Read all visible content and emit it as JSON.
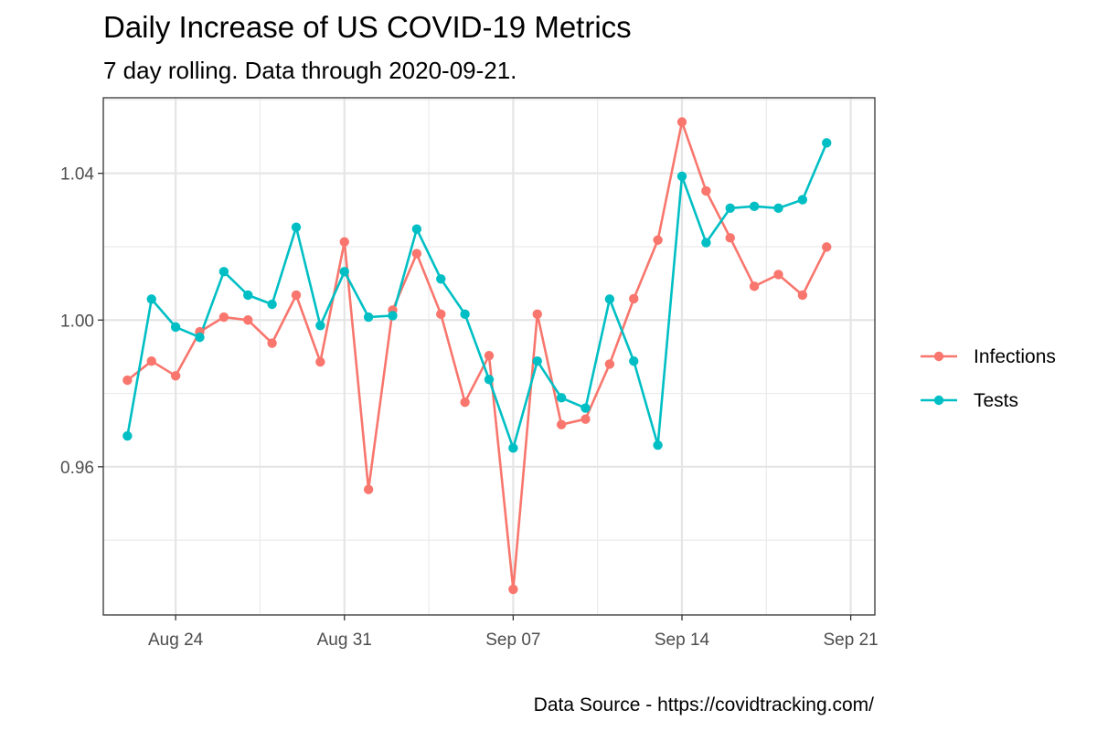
{
  "chart_data": {
    "type": "line",
    "title": "Daily Increase of US COVID-19 Metrics",
    "subtitle": "7 day rolling. Data through 2020-09-21.",
    "caption": "Data Source - https://covidtracking.com/",
    "xlabel": "",
    "ylabel": "",
    "x": [
      "2020-08-22",
      "2020-08-23",
      "2020-08-24",
      "2020-08-25",
      "2020-08-26",
      "2020-08-27",
      "2020-08-28",
      "2020-08-29",
      "2020-08-30",
      "2020-08-31",
      "2020-09-01",
      "2020-09-02",
      "2020-09-03",
      "2020-09-04",
      "2020-09-05",
      "2020-09-06",
      "2020-09-07",
      "2020-09-08",
      "2020-09-09",
      "2020-09-10",
      "2020-09-11",
      "2020-09-12",
      "2020-09-13",
      "2020-09-14",
      "2020-09-15",
      "2020-09-16",
      "2020-09-17",
      "2020-09-18",
      "2020-09-19",
      "2020-09-20",
      "2020-09-21"
    ],
    "x_ticks": [
      "Aug 24",
      "Aug 31",
      "Sep 07",
      "Sep 14",
      "Sep 21"
    ],
    "x_tick_dates": [
      "2020-08-24",
      "2020-08-31",
      "2020-09-07",
      "2020-09-14",
      "2020-09-21"
    ],
    "y_ticks": [
      "0.96",
      "1.00",
      "1.04"
    ],
    "y_tick_values": [
      0.96,
      1.0,
      1.04
    ],
    "ylim": [
      0.9196,
      1.0606
    ],
    "xlim": [
      "2020-08-21",
      "2020-09-22"
    ],
    "grid": true,
    "legend_position": "right",
    "series": [
      {
        "name": "Infections",
        "color": "#F8766D",
        "values": [
          0.9836,
          0.9888,
          0.9848,
          0.9968,
          1.0008,
          1.0,
          0.9937,
          1.0068,
          0.9886,
          1.0213,
          0.9538,
          1.0027,
          1.0181,
          1.0016,
          0.9776,
          0.9903,
          0.9266,
          1.0016,
          0.9715,
          0.973,
          0.988,
          1.0058,
          1.0218,
          1.054,
          1.0352,
          1.0224,
          1.0092,
          1.0124,
          1.0068,
          1.0199,
          null
        ]
      },
      {
        "name": "Tests",
        "color": "#00BFC4",
        "values": [
          0.9684,
          1.0057,
          0.9981,
          0.9953,
          1.0132,
          1.0068,
          1.0043,
          1.0253,
          0.9985,
          1.0132,
          1.0008,
          1.0012,
          1.0248,
          1.0112,
          1.0016,
          0.9838,
          0.9651,
          0.9888,
          0.9788,
          0.976,
          1.0057,
          0.9888,
          0.9659,
          1.0392,
          1.0211,
          1.0305,
          1.031,
          1.0305,
          1.0328,
          1.0483,
          null
        ]
      }
    ]
  }
}
